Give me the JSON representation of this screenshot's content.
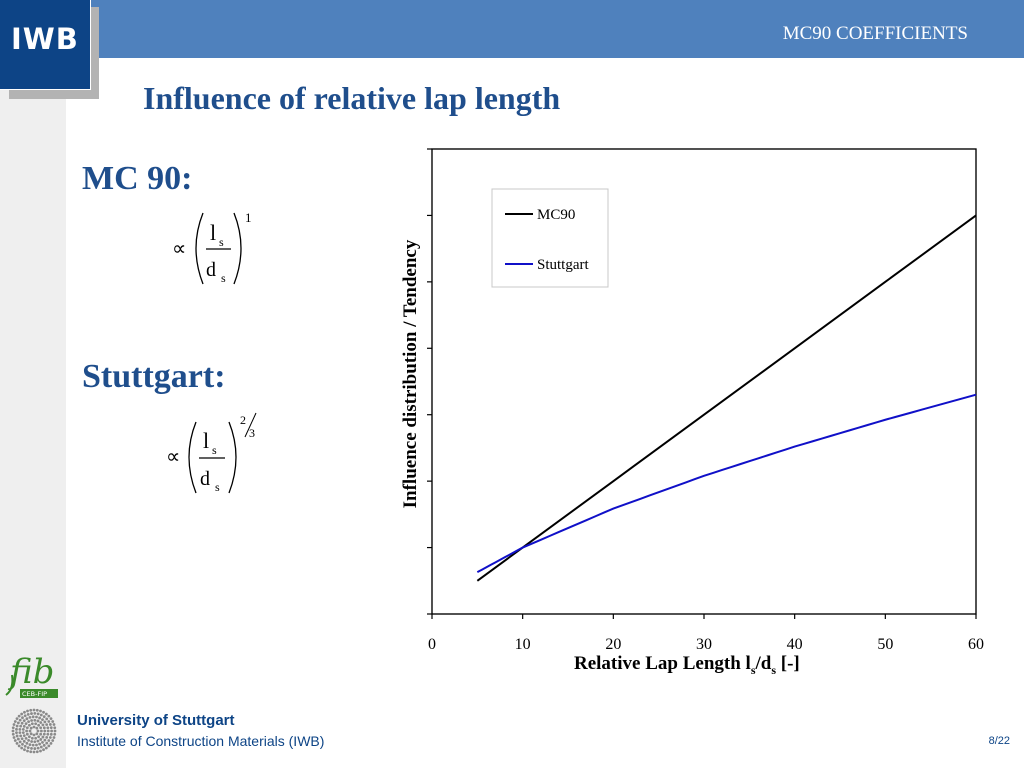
{
  "header": {
    "logo": "IWB",
    "title": "MC90 COEFFICIENTS"
  },
  "slide": {
    "title": "Influence of relative lap length",
    "mc90_label": "MC 90:",
    "stuttgart_label": "Stuttgart:",
    "mc90_formula": {
      "symbol": "∝",
      "numerator": "l",
      "numerator_sub": "s",
      "denominator": "d",
      "denominator_sub": "s",
      "exponent": "1"
    },
    "stuttgart_formula": {
      "symbol": "∝",
      "numerator": "l",
      "numerator_sub": "s",
      "denominator": "d",
      "denominator_sub": "s",
      "exponent_num": "2",
      "exponent_den": "3"
    }
  },
  "footer": {
    "university": "University of Stuttgart",
    "institute": "Institute of Construction Materials (IWB)",
    "page": "8/22",
    "fib_logo": "fib",
    "fib_sub": "CEB-FIP"
  },
  "colors": {
    "topbar": "#4f81bd",
    "logo_bg": "#0d4486",
    "title": "#1f4e8c",
    "mc90_line": "#000000",
    "stuttgart_line": "#1010c8",
    "grid": "#c8c8c8"
  },
  "chart_data": {
    "type": "line",
    "title": "",
    "xlabel_main": "Relative Lap Length l",
    "xlabel_sub1": "s",
    "xlabel_mid": "/d",
    "xlabel_sub2": "s",
    "xlabel_end": " [-]",
    "ylabel": "Influence distribution / Tendency",
    "xlim": [
      0,
      60
    ],
    "ylim": [
      0,
      7
    ],
    "xticks": [
      0,
      10,
      20,
      30,
      40,
      50,
      60
    ],
    "ytick_count": 8,
    "grid": true,
    "legend_position": "top-center",
    "series": [
      {
        "name": "MC90",
        "x": [
          5,
          10,
          20,
          30,
          40,
          50,
          60
        ],
        "y": [
          0.5,
          1.0,
          2.0,
          3.0,
          4.0,
          5.0,
          6.0
        ],
        "color": "#000000"
      },
      {
        "name": "Stuttgart",
        "x": [
          5,
          10,
          20,
          30,
          40,
          50,
          60
        ],
        "y": [
          0.63,
          1.0,
          1.587,
          2.08,
          2.52,
          2.924,
          3.302
        ],
        "color": "#1010c8"
      }
    ]
  }
}
